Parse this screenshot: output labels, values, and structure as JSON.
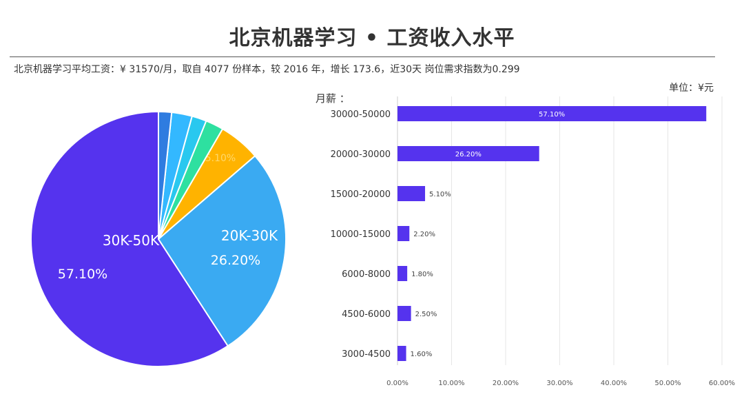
{
  "header": {
    "title": "北京机器学习 • 工资收入水平",
    "summary": "北京机器学习平均工资：¥ 31570/月，取自 4077 份样本，较 2016 年，增长 173.6，近30天 岗位需求指数为0.299",
    "unit": "单位：¥元",
    "bar_axis_label": "月薪 ："
  },
  "colors": {
    "bar": "#5533ee",
    "bar_label_inside": "#ffffff",
    "grid": "#e6e6e6",
    "pie": [
      "#5533ee",
      "#3aaaf2",
      "#ffb300",
      "#2ee0a0",
      "#29c8ef",
      "#33b8ff",
      "#2f7ce0"
    ]
  },
  "chart_data": [
    {
      "type": "pie",
      "slices": [
        {
          "label": "30K-50K",
          "value": 57.1,
          "value_label": "57.10%"
        },
        {
          "label": "20K-30K",
          "value": 26.2,
          "value_label": "26.20%"
        },
        {
          "label": "",
          "value": 5.1,
          "value_label": "5.10%"
        },
        {
          "label": "",
          "value": 2.2,
          "value_label": ""
        },
        {
          "label": "",
          "value": 1.8,
          "value_label": ""
        },
        {
          "label": "",
          "value": 2.5,
          "value_label": ""
        },
        {
          "label": "",
          "value": 1.6,
          "value_label": ""
        }
      ]
    },
    {
      "type": "bar",
      "orientation": "horizontal",
      "categories": [
        "30000-50000",
        "20000-30000",
        "15000-20000",
        "10000-15000",
        "6000-8000",
        "4500-6000",
        "3000-4500"
      ],
      "values": [
        57.1,
        26.2,
        5.1,
        2.2,
        1.8,
        2.5,
        1.6
      ],
      "value_labels": [
        "57.10%",
        "26.20%",
        "5.10%",
        "2.20%",
        "1.80%",
        "2.50%",
        "1.60%"
      ],
      "xlim": [
        0,
        60
      ],
      "xticks": [
        "0.00%",
        "10.00%",
        "20.00%",
        "30.00%",
        "40.00%",
        "50.00%",
        "60.00%"
      ],
      "grid": true
    }
  ]
}
